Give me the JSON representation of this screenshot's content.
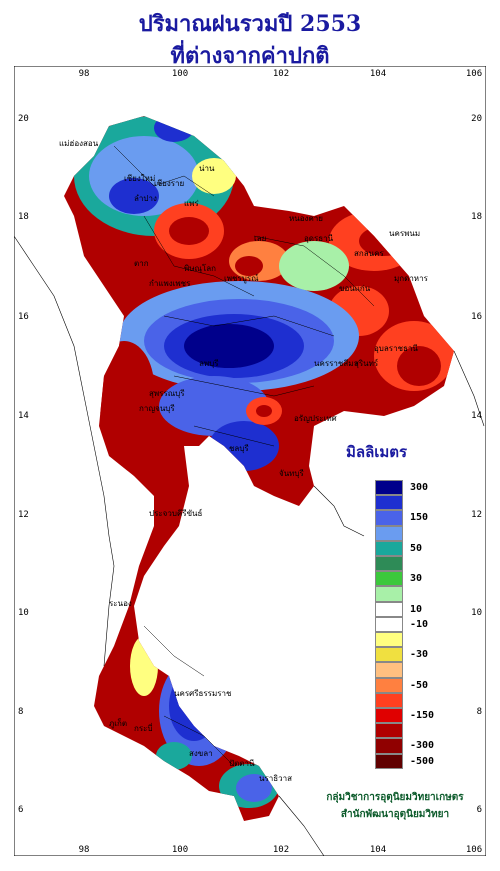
{
  "title_line1": "ปริมาณฝนรวมปี  2553",
  "title_line2": "ที่ต่างจากค่าปกติ",
  "legend_title": "มิลลิเมตร",
  "legend": [
    {
      "label": "300",
      "color": "#00008b"
    },
    {
      "label": "",
      "color": "#1e2fd0"
    },
    {
      "label": "150",
      "color": "#4a63e8"
    },
    {
      "label": "",
      "color": "#6a9cf0"
    },
    {
      "label": "50",
      "color": "#1aa89c"
    },
    {
      "label": "",
      "color": "#2e8b57"
    },
    {
      "label": "30",
      "color": "#3cc83c"
    },
    {
      "label": "",
      "color": "#a8f0a8"
    },
    {
      "label": "10",
      "color": "#ffffff"
    },
    {
      "label": "-10",
      "color": "#ffffff"
    },
    {
      "label": "",
      "color": "#ffff80"
    },
    {
      "label": "-30",
      "color": "#f0e040"
    },
    {
      "label": "",
      "color": "#ffc080"
    },
    {
      "label": "-50",
      "color": "#ff8040"
    },
    {
      "label": "",
      "color": "#ff4020"
    },
    {
      "label": "-150",
      "color": "#e00000"
    },
    {
      "label": "",
      "color": "#b00000"
    },
    {
      "label": "-300",
      "color": "#900000"
    },
    {
      "label": "-500",
      "color": "#600000"
    }
  ],
  "axis": {
    "x_ticks": [
      "98",
      "100",
      "102",
      "104",
      "106"
    ],
    "y_ticks": [
      "20",
      "18",
      "16",
      "14",
      "12",
      "10",
      "8",
      "6"
    ]
  },
  "cities": [
    {
      "name": "เชียงราย",
      "color": "#000"
    },
    {
      "name": "น่าน",
      "color": "#000"
    },
    {
      "name": "แพร่",
      "color": "#000"
    },
    {
      "name": "ลำปาง",
      "color": "#000"
    },
    {
      "name": "เลย",
      "color": "#000"
    },
    {
      "name": "หนองคาย",
      "color": "#000"
    },
    {
      "name": "อุดรธานี",
      "color": "#000"
    },
    {
      "name": "นครพนม",
      "color": "#000"
    },
    {
      "name": "สกลนคร",
      "color": "#000"
    },
    {
      "name": "มุกดาหาร",
      "color": "#000"
    },
    {
      "name": "ขอนแก่น",
      "color": "#000"
    },
    {
      "name": "พิษณุโลก",
      "color": "#000"
    },
    {
      "name": "เพชรบูรณ์",
      "color": "#000"
    },
    {
      "name": "ตาก",
      "color": "#000"
    },
    {
      "name": "กำแพงเพชร",
      "color": "#000"
    },
    {
      "name": "นครราชสีมา",
      "color": "#000"
    },
    {
      "name": "สุรินทร์",
      "color": "#000"
    },
    {
      "name": "อุบลราชธานี",
      "color": "#000"
    },
    {
      "name": "ลพบุรี",
      "color": "#000"
    },
    {
      "name": "สุพรรณบุรี",
      "color": "#000"
    },
    {
      "name": "กาญจนบุรี",
      "color": "#000"
    },
    {
      "name": "ชลบุรี",
      "color": "#000"
    },
    {
      "name": "จันทบุรี",
      "color": "#000"
    },
    {
      "name": "ประจวบคีรีขันธ์",
      "color": "#000"
    },
    {
      "name": "ระนอง",
      "color": "#000"
    },
    {
      "name": "นครศรีธรรมราช",
      "color": "#000"
    },
    {
      "name": "ภูเก็ต",
      "color": "#000"
    },
    {
      "name": "กระบี่",
      "color": "#000"
    },
    {
      "name": "สงขลา",
      "color": "#000"
    },
    {
      "name": "ปัตตานี",
      "color": "#000"
    },
    {
      "name": "นราธิวาส",
      "color": "#000"
    },
    {
      "name": "แม่ฮ่องสอน",
      "color": "#000"
    },
    {
      "name": "เชียงใหม่",
      "color": "#000"
    },
    {
      "name": "อรัญประเทศ",
      "color": "#000"
    }
  ],
  "credit_line1": "กลุ่มวิชาการอุตุนิยมวิทยาเกษตร",
  "credit_line2": "สำนักพัฒนาอุตุนิยมวิทยา"
}
